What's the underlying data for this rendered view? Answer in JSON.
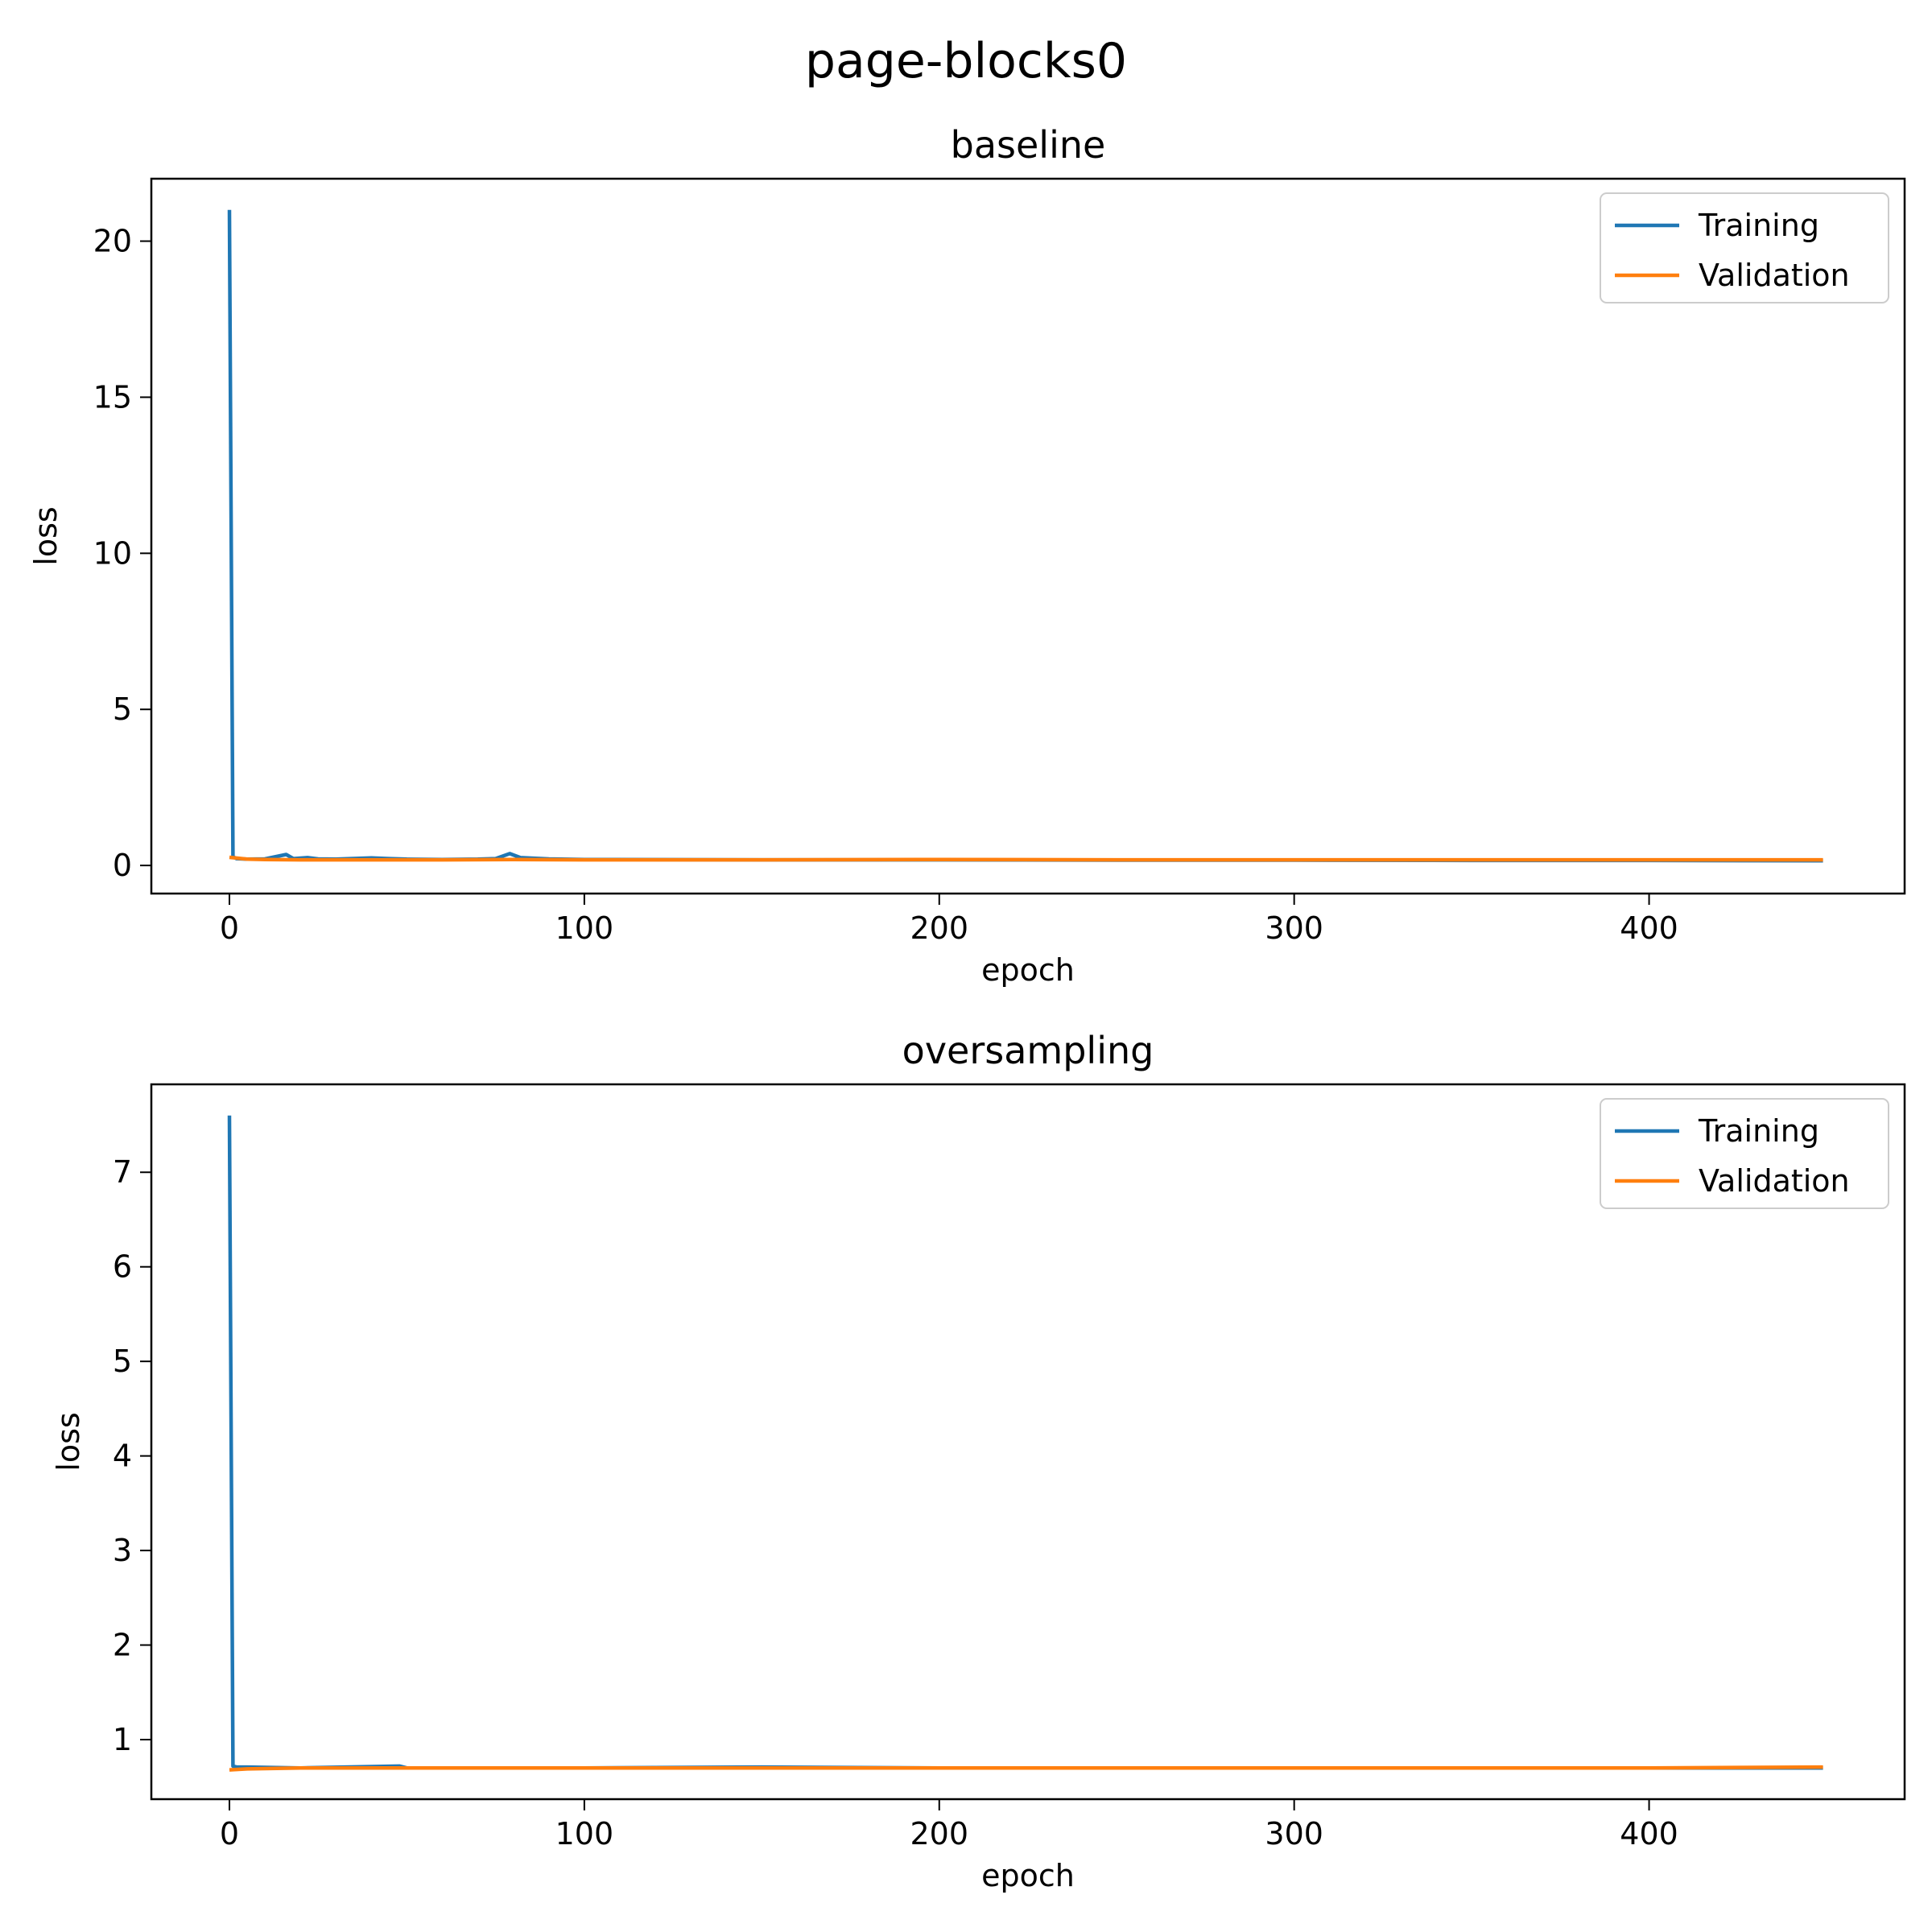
{
  "figure": {
    "suptitle": "page-blocks0"
  },
  "colors": {
    "training": "#1f77b4",
    "validation": "#ff7f0e",
    "axes": "#000000",
    "legend_border": "#cccccc"
  },
  "chart_data": [
    {
      "type": "line",
      "title": "baseline",
      "xlabel": "epoch",
      "ylabel": "loss",
      "xlim": [
        -22,
        472
      ],
      "ylim": [
        -0.9,
        22.0
      ],
      "xticks": [
        0,
        100,
        200,
        300,
        400
      ],
      "yticks": [
        0,
        5,
        10,
        15,
        20
      ],
      "grid": false,
      "legend_position": "top-right",
      "series": [
        {
          "name": "Training",
          "color_key": "training",
          "x": [
            0,
            1,
            2,
            5,
            10,
            16,
            18,
            22,
            25,
            30,
            40,
            45,
            50,
            60,
            70,
            75,
            79,
            82,
            90,
            100,
            150,
            200,
            250,
            300,
            350,
            400,
            449
          ],
          "y": [
            21.0,
            0.28,
            0.22,
            0.2,
            0.21,
            0.35,
            0.22,
            0.25,
            0.21,
            0.2,
            0.24,
            0.22,
            0.2,
            0.19,
            0.2,
            0.22,
            0.38,
            0.25,
            0.21,
            0.19,
            0.18,
            0.18,
            0.17,
            0.17,
            0.16,
            0.16,
            0.15
          ]
        },
        {
          "name": "Validation",
          "color_key": "validation",
          "x": [
            0,
            5,
            10,
            20,
            40,
            60,
            80,
            100,
            150,
            200,
            250,
            300,
            350,
            400,
            449
          ],
          "y": [
            0.26,
            0.2,
            0.19,
            0.18,
            0.18,
            0.18,
            0.19,
            0.18,
            0.18,
            0.19,
            0.18,
            0.18,
            0.18,
            0.18,
            0.18
          ]
        }
      ]
    },
    {
      "type": "line",
      "title": "oversampling",
      "xlabel": "epoch",
      "ylabel": "loss",
      "xlim": [
        -22,
        472
      ],
      "ylim": [
        0.37,
        7.93
      ],
      "xticks": [
        0,
        100,
        200,
        300,
        400
      ],
      "yticks": [
        1,
        2,
        3,
        4,
        5,
        6,
        7
      ],
      "grid": false,
      "legend_position": "top-right",
      "series": [
        {
          "name": "Training",
          "color_key": "training",
          "x": [
            0,
            1,
            2,
            5,
            20,
            48,
            50,
            100,
            150,
            200,
            250,
            300,
            350,
            400,
            449
          ],
          "y": [
            7.6,
            0.72,
            0.71,
            0.71,
            0.7,
            0.72,
            0.7,
            0.7,
            0.71,
            0.7,
            0.7,
            0.7,
            0.7,
            0.7,
            0.7
          ]
        },
        {
          "name": "Validation",
          "color_key": "validation",
          "x": [
            0,
            5,
            20,
            50,
            100,
            150,
            200,
            250,
            300,
            350,
            400,
            449
          ],
          "y": [
            0.68,
            0.69,
            0.7,
            0.7,
            0.7,
            0.7,
            0.7,
            0.7,
            0.7,
            0.7,
            0.7,
            0.71
          ]
        }
      ]
    }
  ]
}
